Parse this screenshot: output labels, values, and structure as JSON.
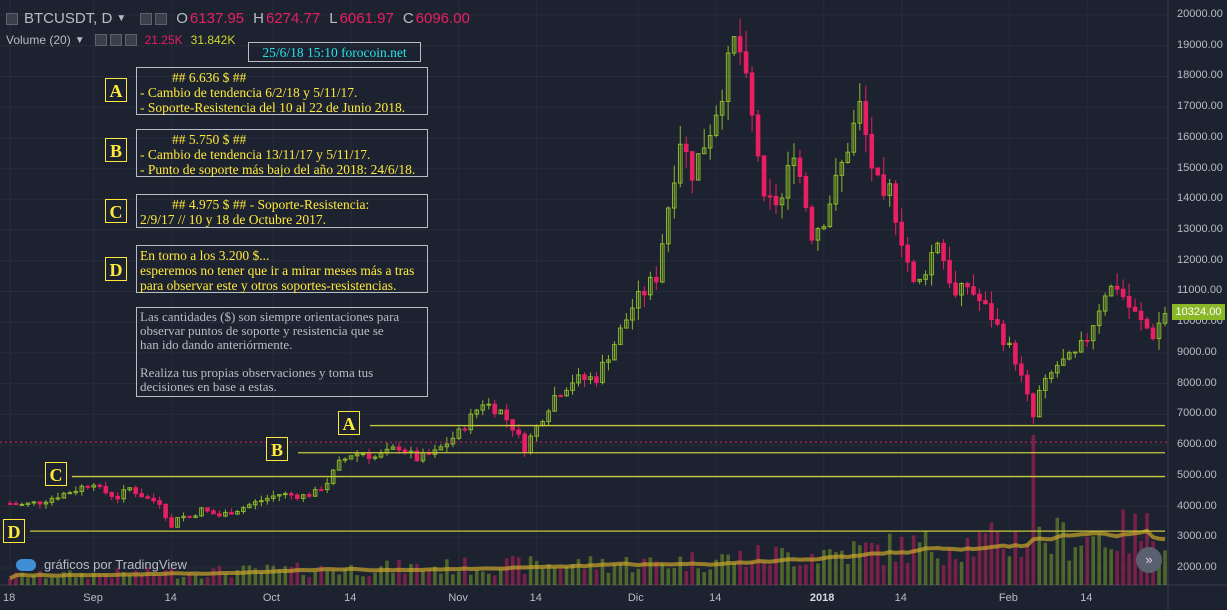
{
  "header": {
    "symbol": "BTCUSDT, D",
    "o_label": "O",
    "o_value": "6137.95",
    "h_label": "H",
    "h_value": "6274.77",
    "l_label": "L",
    "l_value": "6061.97",
    "c_label": "C",
    "c_value": "6096.00",
    "volume_label": "Volume (20)",
    "volume_value": "21.25K",
    "volume_ma": "31.842K"
  },
  "date_tag": "25/6/18  15:10    forocoin.net",
  "notes": {
    "A": {
      "badge": "A",
      "lines": [
        "##  6.636 $  ##",
        "- Cambio de tendencia 6/2/18 y 5/11/17.",
        "- Soporte-Resistencia del 10 al 22 de Junio 2018."
      ]
    },
    "B": {
      "badge": "B",
      "lines": [
        "##  5.750 $  ##",
        "- Cambio de tendencia 13/11/17 y 5/11/17.",
        "- Punto de soporte más bajo del año 2018: 24/6/18."
      ]
    },
    "C": {
      "badge": "C",
      "lines": [
        "##  4.975 $  ##     - Soporte-Resistencia:",
        "2/9/17 // 10 y 18 de Octubre 2017."
      ]
    },
    "D": {
      "badge": "D",
      "lines": [
        "En torno a los 3.200 $...",
        "esperemos no tener que ir a mirar meses más a tras",
        "para observar este y otros soportes-resistencias."
      ]
    },
    "info": {
      "lines": [
        "Las cantidades ($)  son siempre orientaciones para",
        "observar puntos de soporte y resistencia que se",
        "han ido dando anteriórmente.",
        "",
        "Realiza tus propias observaciones y toma tus",
        "decisiones en base a estas."
      ]
    }
  },
  "price_tag": "10324.00",
  "watermark": "gráficos por TradingView",
  "scroll_button": "»",
  "colors": {
    "background": "#1d2230",
    "up": "#8bb829",
    "down": "#e91e63",
    "level_line": "#c8c83a",
    "text": "#b7bcc7",
    "note_text": "#ffea3b",
    "tag_text": "#28e1e8",
    "volume_ma": "#c9a52a"
  },
  "chart_data": {
    "type": "candlestick",
    "title": "BTCUSDT, D",
    "ylim": [
      1500,
      20300
    ],
    "y_ticks": [
      "20000.00",
      "19000.00",
      "18000.00",
      "17000.00",
      "16000.00",
      "15000.00",
      "14000.00",
      "13000.00",
      "12000.00",
      "11000.00",
      "10000.00",
      "9000.00",
      "8000.00",
      "7000.00",
      "6000.00",
      "5000.00",
      "4000.00",
      "3000.00",
      "2000.00"
    ],
    "x_ticks": [
      "18",
      "Sep",
      "14",
      "Oct",
      "14",
      "Nov",
      "14",
      "Dic",
      "14",
      "2018",
      "14",
      "Feb",
      "14"
    ],
    "x_ticks_bold": [
      "2018"
    ],
    "date_range": [
      "2017-08-18",
      "2018-02-27"
    ],
    "support_resistance_levels": [
      {
        "label": "A",
        "price": 6636
      },
      {
        "label": "B",
        "price": 5750
      },
      {
        "label": "C",
        "price": 4975
      },
      {
        "label": "D",
        "price": 3200
      }
    ],
    "current_price_line": 6096,
    "last_price": 10324,
    "close_path": [
      [
        "2017-08-18",
        4100
      ],
      [
        "2017-08-20",
        4050
      ],
      [
        "2017-08-23",
        4150
      ],
      [
        "2017-08-26",
        4350
      ],
      [
        "2017-08-29",
        4550
      ],
      [
        "2017-09-01",
        4800
      ],
      [
        "2017-09-02",
        4550
      ],
      [
        "2017-09-05",
        4300
      ],
      [
        "2017-09-07",
        4600
      ],
      [
        "2017-09-10",
        4250
      ],
      [
        "2017-09-12",
        4150
      ],
      [
        "2017-09-14",
        3300
      ],
      [
        "2017-09-15",
        3700
      ],
      [
        "2017-09-17",
        3650
      ],
      [
        "2017-09-19",
        3900
      ],
      [
        "2017-09-22",
        3700
      ],
      [
        "2017-09-25",
        3900
      ],
      [
        "2017-09-29",
        4200
      ],
      [
        "2017-10-02",
        4400
      ],
      [
        "2017-10-06",
        4350
      ],
      [
        "2017-10-08",
        4450
      ],
      [
        "2017-10-10",
        4800
      ],
      [
        "2017-10-12",
        5400
      ],
      [
        "2017-10-14",
        5700
      ],
      [
        "2017-10-16",
        5750
      ],
      [
        "2017-10-18",
        5600
      ],
      [
        "2017-10-20",
        5750
      ],
      [
        "2017-10-22",
        5950
      ],
      [
        "2017-10-25",
        5550
      ],
      [
        "2017-10-28",
        5750
      ],
      [
        "2017-11-01",
        6400
      ],
      [
        "2017-11-05",
        7400
      ],
      [
        "2017-11-08",
        7100
      ],
      [
        "2017-11-10",
        6600
      ],
      [
        "2017-11-12",
        5900
      ],
      [
        "2017-11-14",
        6600
      ],
      [
        "2017-11-17",
        7600
      ],
      [
        "2017-11-20",
        8100
      ],
      [
        "2017-11-24",
        8200
      ],
      [
        "2017-11-28",
        9700
      ],
      [
        "2017-11-30",
        10500
      ],
      [
        "2017-12-04",
        11500
      ],
      [
        "2017-12-06",
        13800
      ],
      [
        "2017-12-08",
        16000
      ],
      [
        "2017-12-10",
        14900
      ],
      [
        "2017-12-13",
        16300
      ],
      [
        "2017-12-15",
        17600
      ],
      [
        "2017-12-17",
        19100
      ],
      [
        "2017-12-18",
        18800
      ],
      [
        "2017-12-21",
        15500
      ],
      [
        "2017-12-22",
        13800
      ],
      [
        "2017-12-25",
        14000
      ],
      [
        "2017-12-27",
        15700
      ],
      [
        "2017-12-30",
        12900
      ],
      [
        "2018-01-01",
        13400
      ],
      [
        "2018-01-04",
        15100
      ],
      [
        "2018-01-07",
        17000
      ],
      [
        "2018-01-09",
        15100
      ],
      [
        "2018-01-11",
        13800
      ],
      [
        "2018-01-12",
        14300
      ],
      [
        "2018-01-16",
        11200
      ],
      [
        "2018-01-17",
        11300
      ],
      [
        "2018-01-20",
        12700
      ],
      [
        "2018-01-23",
        10800
      ],
      [
        "2018-01-25",
        11200
      ],
      [
        "2018-01-29",
        10200
      ],
      [
        "2018-02-02",
        8800
      ],
      [
        "2018-02-05",
        6900
      ],
      [
        "2018-02-06",
        7700
      ],
      [
        "2018-02-09",
        8600
      ],
      [
        "2018-02-12",
        8900
      ],
      [
        "2018-02-14",
        9500
      ],
      [
        "2018-02-17",
        11000
      ],
      [
        "2018-02-19",
        11200
      ],
      [
        "2018-02-21",
        10500
      ],
      [
        "2018-02-23",
        10000
      ],
      [
        "2018-02-25",
        9600
      ],
      [
        "2018-02-27",
        10324
      ]
    ]
  }
}
